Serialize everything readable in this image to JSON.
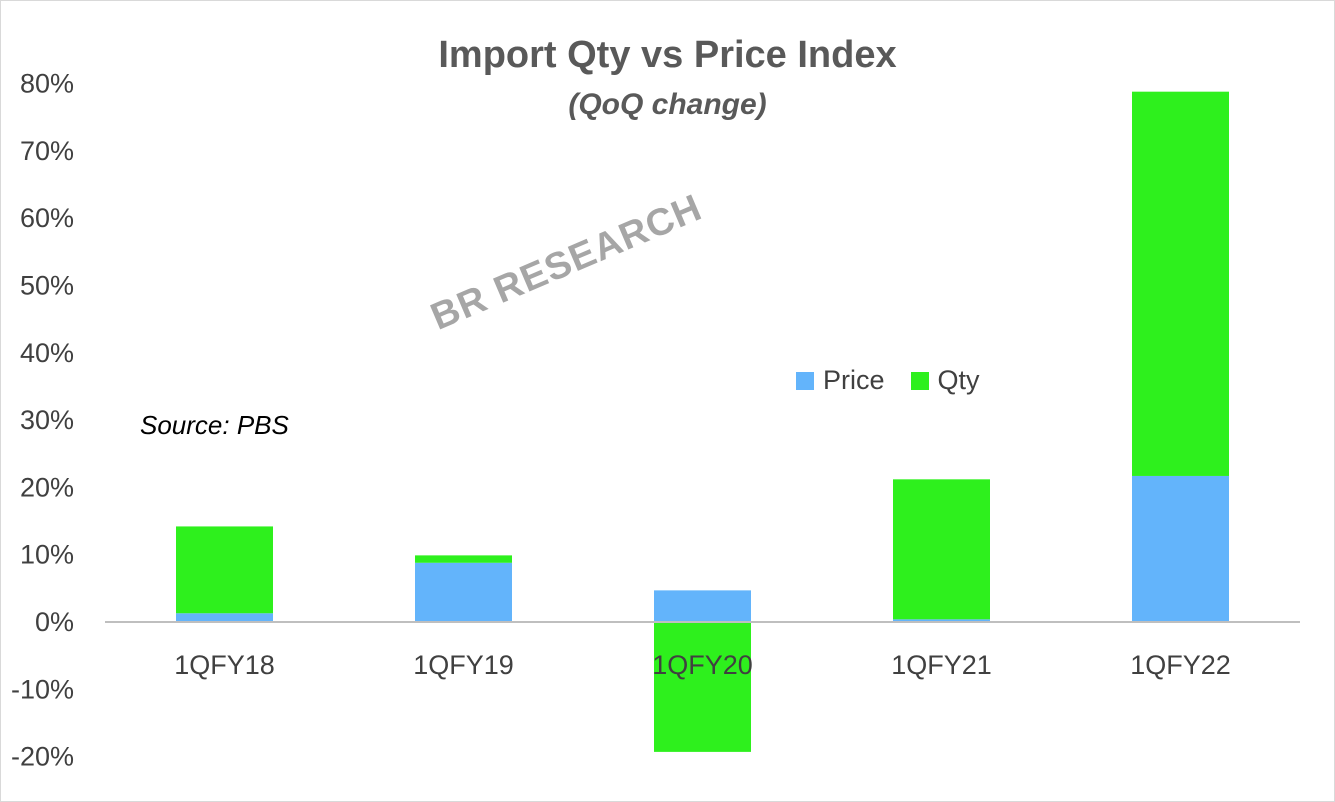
{
  "colors": {
    "price": "#63b4fb",
    "qty": "#2ef01d",
    "axis": "#bfbfbf",
    "watermark": "#a6a6a6"
  },
  "chart_data": {
    "type": "bar",
    "stacked": true,
    "title": "Import Qty vs Price Index",
    "subtitle": "(QoQ change)",
    "source": "Source: PBS",
    "watermark": "BR RESEARCH",
    "categories": [
      "1QFY18",
      "1QFY19",
      "1QFY20",
      "1QFY21",
      "1QFY22"
    ],
    "series": [
      {
        "name": "Price",
        "values": [
          1.3,
          8.8,
          4.7,
          0.4,
          21.7
        ]
      },
      {
        "name": "Qty",
        "values": [
          12.9,
          1.1,
          -19.3,
          20.8,
          57.1
        ]
      }
    ],
    "ylim": [
      -20,
      80
    ],
    "yticks": [
      "80%",
      "70%",
      "60%",
      "50%",
      "40%",
      "30%",
      "20%",
      "10%",
      "0%",
      "-10%",
      "-20%"
    ],
    "grid": false,
    "legend": "center-right"
  }
}
